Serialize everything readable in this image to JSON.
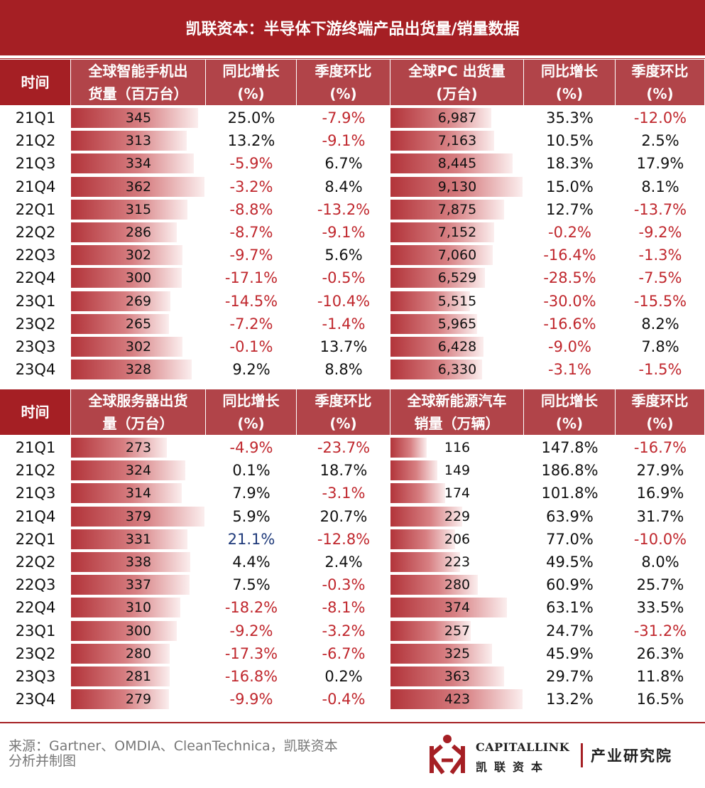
{
  "title": "凯联资本：半导体下游终端产品出货量/销量数据",
  "footer": {
    "source_line1": "来源：Gartner、OMDIA、CleanTechnica，凯联资本",
    "source_line2": "分析并制图",
    "logo_en": "CAPITALLINK",
    "logo_cn": "凯联资本",
    "logo_inst": "产业研究院"
  },
  "colors": {
    "accent": "#a51f24",
    "header": "#b14449",
    "negative": "#c0272d",
    "blue": "#1f3a7a"
  },
  "chart_data": [
    {
      "type": "table",
      "header": {
        "time": "时间",
        "metric_l1": "全球智能手机出",
        "metric_l2": "货量（百万台）",
        "yoy_l1": "同比增长",
        "yoy_l2": "(%)",
        "qoq_l1": "季度环比",
        "qoq_l2": "(%)"
      },
      "categories": [
        "21Q1",
        "21Q2",
        "21Q3",
        "21Q4",
        "22Q1",
        "22Q2",
        "22Q3",
        "22Q4",
        "23Q1",
        "23Q2",
        "23Q3",
        "23Q4"
      ],
      "values": [
        345,
        313,
        334,
        362,
        315,
        286,
        302,
        300,
        269,
        265,
        302,
        328
      ],
      "values_text": [
        "345",
        "313",
        "334",
        "362",
        "315",
        "286",
        "302",
        "300",
        "269",
        "265",
        "302",
        "328"
      ],
      "yoy": [
        "25.0%",
        "13.2%",
        "-5.9%",
        "-3.2%",
        "-8.8%",
        "-8.7%",
        "-9.7%",
        "-17.1%",
        "-14.5%",
        "-7.2%",
        "-0.1%",
        "9.2%"
      ],
      "qoq": [
        "-7.9%",
        "-9.1%",
        "6.7%",
        "8.4%",
        "-13.2%",
        "-9.1%",
        "5.6%",
        "-0.5%",
        "-10.4%",
        "-1.4%",
        "13.7%",
        "8.8%"
      ]
    },
    {
      "type": "table",
      "header": {
        "metric_l1": "全球PC 出货量",
        "metric_l2": "(万台)",
        "yoy_l1": "同比增长",
        "yoy_l2": "(%)",
        "qoq_l1": "季度环比",
        "qoq_l2": "(%)"
      },
      "categories": [
        "21Q1",
        "21Q2",
        "21Q3",
        "21Q4",
        "22Q1",
        "22Q2",
        "22Q3",
        "22Q4",
        "23Q1",
        "23Q2",
        "23Q3",
        "23Q4"
      ],
      "values": [
        6987,
        7163,
        8445,
        9130,
        7875,
        7152,
        7060,
        6529,
        5515,
        5965,
        6428,
        6330
      ],
      "values_text": [
        "6,987",
        "7,163",
        "8,445",
        "9,130",
        "7,875",
        "7,152",
        "7,060",
        "6,529",
        "5,515",
        "5,965",
        "6,428",
        "6,330"
      ],
      "yoy": [
        "35.3%",
        "10.5%",
        "18.3%",
        "15.0%",
        "12.7%",
        "-0.2%",
        "-16.4%",
        "-28.5%",
        "-30.0%",
        "-16.6%",
        "-9.0%",
        "-3.1%"
      ],
      "qoq": [
        "-12.0%",
        "2.5%",
        "17.9%",
        "8.1%",
        "-13.7%",
        "-9.2%",
        "-1.3%",
        "-7.5%",
        "-15.5%",
        "8.2%",
        "7.8%",
        "-1.5%"
      ]
    },
    {
      "type": "table",
      "header": {
        "time": "时间",
        "metric_l1": "全球服务器出货",
        "metric_l2": "量（万台）",
        "yoy_l1": "同比增长",
        "yoy_l2": "(%)",
        "qoq_l1": "季度环比",
        "qoq_l2": "(%)"
      },
      "categories": [
        "21Q1",
        "21Q2",
        "21Q3",
        "21Q4",
        "22Q1",
        "22Q2",
        "22Q3",
        "22Q4",
        "23Q1",
        "23Q2",
        "23Q3",
        "23Q4"
      ],
      "values": [
        273,
        324,
        314,
        379,
        331,
        338,
        337,
        310,
        300,
        280,
        281,
        279
      ],
      "values_text": [
        "273",
        "324",
        "314",
        "379",
        "331",
        "338",
        "337",
        "310",
        "300",
        "280",
        "281",
        "279"
      ],
      "yoy": [
        "-4.9%",
        "0.1%",
        "7.9%",
        "5.9%",
        "21.1%",
        "4.4%",
        "7.5%",
        "-18.2%",
        "-9.2%",
        "-17.3%",
        "-16.8%",
        "-9.9%"
      ],
      "qoq": [
        "-23.7%",
        "18.7%",
        "-3.1%",
        "20.7%",
        "-12.8%",
        "2.4%",
        "-0.3%",
        "-8.1%",
        "-3.2%",
        "-6.7%",
        "0.2%",
        "-0.4%"
      ]
    },
    {
      "type": "table",
      "header": {
        "metric_l1": "全球新能源汽车",
        "metric_l2": "销量（万辆）",
        "yoy_l1": "同比增长",
        "yoy_l2": "(%)",
        "qoq_l1": "季度环比",
        "qoq_l2": "(%)"
      },
      "categories": [
        "21Q1",
        "21Q2",
        "21Q3",
        "21Q4",
        "22Q1",
        "22Q2",
        "22Q3",
        "22Q4",
        "23Q1",
        "23Q2",
        "23Q3",
        "23Q4"
      ],
      "values": [
        116,
        149,
        174,
        229,
        206,
        223,
        280,
        374,
        257,
        325,
        363,
        423
      ],
      "values_text": [
        "116",
        "149",
        "174",
        "229",
        "206",
        "223",
        "280",
        "374",
        "257",
        "325",
        "363",
        "423"
      ],
      "yoy": [
        "147.8%",
        "186.8%",
        "101.8%",
        "63.9%",
        "77.0%",
        "49.5%",
        "60.9%",
        "63.1%",
        "24.7%",
        "45.9%",
        "29.7%",
        "13.2%"
      ],
      "qoq": [
        "-16.7%",
        "27.9%",
        "16.9%",
        "31.7%",
        "-10.0%",
        "8.0%",
        "25.7%",
        "33.5%",
        "-31.2%",
        "26.3%",
        "11.8%",
        "16.5%"
      ]
    }
  ]
}
